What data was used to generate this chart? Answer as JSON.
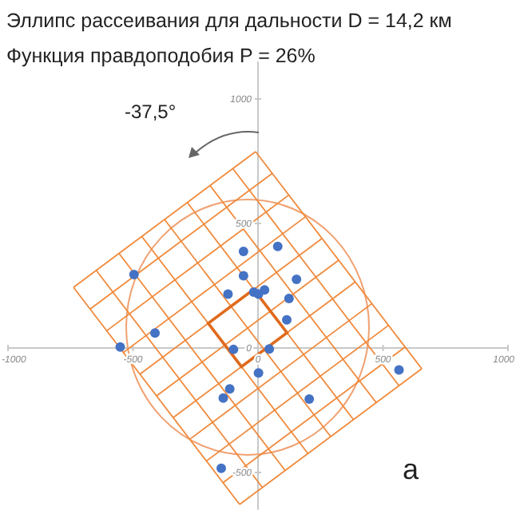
{
  "chart_data": {
    "type": "scatter",
    "title": "Эллипс рассеивания для дальности D = 14,2 км",
    "subtitle": "Функция правдоподобия P = 26%",
    "x": [
      -58,
      79,
      -496,
      -58,
      154,
      -120,
      -17,
      2,
      26,
      124,
      115,
      -412,
      -551,
      -98,
      45,
      2,
      -113,
      -139,
      205,
      564,
      -147
    ],
    "series": [
      {
        "color": "#4472c4",
        "values": [
          388,
          408,
          295,
          290,
          276,
          216,
          224,
          216,
          233,
          199,
          113,
          60,
          4,
          -6,
          -4,
          -100,
          -164,
          -201,
          -205,
          -88,
          -483
        ]
      }
    ],
    "xlim": [
      -1000,
      1000
    ],
    "ylim": [
      -650,
      1150
    ],
    "xticks": [
      -1000,
      -500,
      0,
      500,
      1000
    ],
    "yticks": [
      -500,
      0,
      500,
      1000
    ],
    "grid": false,
    "marker": "circle",
    "annotations": [
      "-37,5°",
      "a"
    ]
  }
}
